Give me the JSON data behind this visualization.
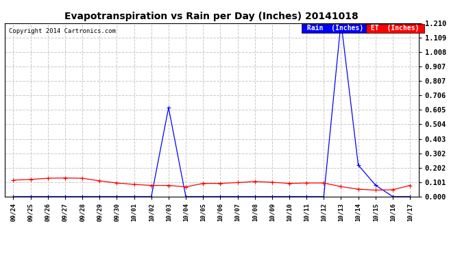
{
  "title": "Evapotranspiration vs Rain per Day (Inches) 20141018",
  "copyright": "Copyright 2014 Cartronics.com",
  "x_labels": [
    "09/24",
    "09/25",
    "09/26",
    "09/27",
    "09/28",
    "09/29",
    "09/30",
    "10/01",
    "10/02",
    "10/03",
    "10/04",
    "10/05",
    "10/06",
    "10/07",
    "10/08",
    "10/09",
    "10/10",
    "10/11",
    "10/12",
    "10/13",
    "10/14",
    "10/15",
    "10/16",
    "10/17"
  ],
  "rain_values": [
    0.0,
    0.0,
    0.0,
    0.0,
    0.0,
    0.0,
    0.0,
    0.0,
    0.0,
    0.62,
    0.0,
    0.0,
    0.0,
    0.0,
    0.0,
    0.0,
    0.0,
    0.0,
    0.0,
    1.22,
    0.22,
    0.08,
    0.0,
    0.0
  ],
  "et_values": [
    0.115,
    0.12,
    0.128,
    0.13,
    0.128,
    0.11,
    0.095,
    0.085,
    0.078,
    0.078,
    0.068,
    0.092,
    0.092,
    0.098,
    0.105,
    0.1,
    0.092,
    0.095,
    0.095,
    0.07,
    0.052,
    0.045,
    0.048,
    0.078
  ],
  "rain_color": "#0000ff",
  "et_color": "#ff0000",
  "background_color": "#ffffff",
  "plot_bg_color": "#ffffff",
  "grid_color": "#c8c8c8",
  "ylim": [
    0.0,
    1.21
  ],
  "yticks": [
    0.0,
    0.101,
    0.202,
    0.302,
    0.403,
    0.504,
    0.605,
    0.706,
    0.807,
    0.907,
    1.008,
    1.109,
    1.21
  ],
  "legend_rain_label": "Rain  (Inches)",
  "legend_et_label": "ET  (Inches)",
  "legend_rain_bg": "#0000ff",
  "legend_et_bg": "#ff0000"
}
